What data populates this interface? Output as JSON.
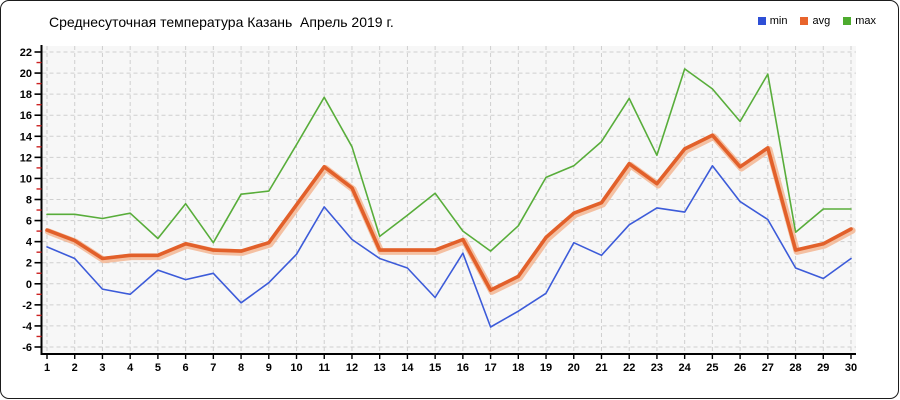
{
  "title": "Среднесуточная температура Казань  Апрель 2019 г.",
  "legend": {
    "items": [
      {
        "label": "min",
        "color": "#2e4fd6"
      },
      {
        "label": "avg",
        "color": "#e8642c"
      },
      {
        "label": "max",
        "color": "#4dab2e"
      }
    ]
  },
  "chart_data": {
    "type": "line",
    "title": "Среднесуточная температура Казань  Апрель 2019 г.",
    "xlabel": "",
    "ylabel": "",
    "x": [
      1,
      2,
      3,
      4,
      5,
      6,
      7,
      8,
      9,
      10,
      11,
      12,
      13,
      14,
      15,
      16,
      17,
      18,
      19,
      20,
      21,
      22,
      23,
      24,
      25,
      26,
      27,
      28,
      29,
      30
    ],
    "series": [
      {
        "name": "min",
        "color": "#3c5bd9",
        "width": 1.6,
        "values": [
          3.5,
          2.4,
          -0.5,
          -1.0,
          1.3,
          0.4,
          1.0,
          -1.8,
          0.1,
          2.8,
          7.3,
          4.2,
          2.4,
          1.5,
          -1.3,
          2.9,
          -4.1,
          -2.6,
          -0.9,
          3.9,
          2.7,
          5.6,
          7.2,
          6.8,
          11.2,
          7.8,
          6.1,
          1.5,
          0.5,
          2.4
        ]
      },
      {
        "name": "avg",
        "color": "#e2602a",
        "halo": "#f3ae85",
        "width": 3.6,
        "values": [
          5.1,
          4.1,
          2.4,
          2.7,
          2.7,
          3.8,
          3.2,
          3.1,
          3.9,
          7.5,
          11.1,
          9.1,
          3.2,
          3.2,
          3.2,
          4.2,
          -0.6,
          0.7,
          4.4,
          6.7,
          7.7,
          11.4,
          9.5,
          12.8,
          14.1,
          11.1,
          12.9,
          3.2,
          3.8,
          5.2
        ]
      },
      {
        "name": "max",
        "color": "#58ad3a",
        "width": 1.6,
        "values": [
          6.6,
          6.6,
          6.2,
          6.7,
          4.3,
          7.6,
          3.9,
          8.5,
          8.8,
          13.2,
          17.7,
          13.0,
          4.5,
          6.5,
          8.6,
          5.0,
          3.1,
          5.5,
          10.1,
          11.2,
          13.5,
          17.6,
          12.2,
          20.4,
          18.5,
          15.4,
          19.9,
          4.9,
          7.1,
          7.1
        ]
      }
    ],
    "ylim": [
      -6,
      22
    ],
    "yticks": [
      22,
      20,
      18,
      16,
      14,
      12,
      10,
      8,
      6,
      4,
      2,
      0,
      -2,
      -4,
      -6
    ],
    "grid": true,
    "legend_position": "top-right",
    "axis": {
      "axis_color": "#000000",
      "minor_tick_color": "#cc2222",
      "grid_color": "#cfcfcf",
      "plot_bg": "#f7f7f7"
    }
  }
}
